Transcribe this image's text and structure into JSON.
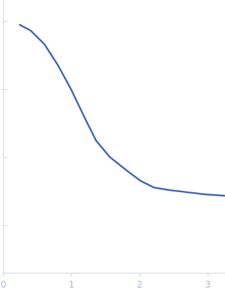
{
  "chart_data": {
    "type": "line",
    "x": [
      0.23,
      0.4,
      0.6,
      0.8,
      0.99,
      1.21,
      1.36,
      1.56,
      1.81,
      2.01,
      2.21,
      2.46,
      2.71,
      2.96,
      3.25
    ],
    "values": [
      3.96,
      3.87,
      3.67,
      3.36,
      3.01,
      2.55,
      2.25,
      2.01,
      1.81,
      1.66,
      1.56,
      1.52,
      1.49,
      1.46,
      1.44
    ],
    "color": "#3a64b0",
    "xlim": [
      0,
      3.25
    ],
    "xticks": [
      0,
      1,
      2,
      3
    ],
    "ylim": [
      0.3,
      4.32
    ],
    "yticks": [
      1,
      2,
      3,
      4
    ]
  }
}
